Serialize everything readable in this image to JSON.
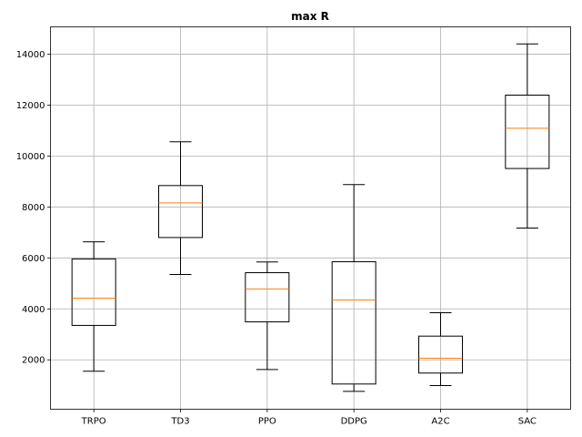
{
  "chart_data": {
    "type": "box",
    "title": "max R",
    "xlabel": "",
    "ylabel": "",
    "categories": [
      "TRPO",
      "TD3",
      "PPO",
      "DDPG",
      "A2C",
      "SAC"
    ],
    "boxes": [
      {
        "name": "TRPO",
        "whisker_low": 1550,
        "q1": 3350,
        "median": 4420,
        "q3": 5960,
        "whisker_high": 6630
      },
      {
        "name": "TD3",
        "whisker_low": 5350,
        "q1": 6800,
        "median": 8160,
        "q3": 8840,
        "whisker_high": 10560
      },
      {
        "name": "PPO",
        "whisker_low": 1620,
        "q1": 3490,
        "median": 4780,
        "q3": 5420,
        "whisker_high": 5840
      },
      {
        "name": "DDPG",
        "whisker_low": 760,
        "q1": 1050,
        "median": 4350,
        "q3": 5850,
        "whisker_high": 8880
      },
      {
        "name": "A2C",
        "whisker_low": 990,
        "q1": 1480,
        "median": 2060,
        "q3": 2930,
        "whisker_high": 3850
      },
      {
        "name": "SAC",
        "whisker_low": 7170,
        "q1": 9510,
        "median": 11090,
        "q3": 12390,
        "whisker_high": 14400
      }
    ],
    "y_ticks": [
      2000,
      4000,
      6000,
      8000,
      10000,
      12000,
      14000
    ],
    "y_tick_labels": [
      "2000",
      "4000",
      "6000",
      "8000",
      "10000",
      "12000",
      "14000"
    ],
    "ylim": [
      60,
      15070
    ],
    "grid": true,
    "colors": {
      "box": "#000000",
      "median": "#ff7f0e",
      "grid": "#b0b0b0",
      "axes": "#000000"
    }
  }
}
